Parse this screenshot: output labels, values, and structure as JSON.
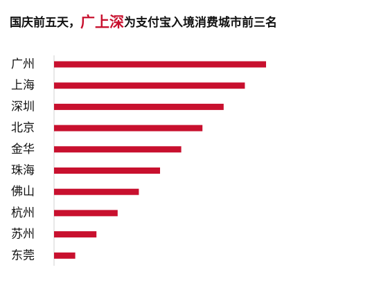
{
  "chart_data": {
    "type": "hbar",
    "title": [
      {
        "text": "国庆前五天，",
        "color": "#111111"
      },
      {
        "text": "广上深",
        "color": "#c8102e"
      },
      {
        "text": "为支付宝入境消费城市前三名",
        "color": "#111111"
      }
    ],
    "categories": [
      "广州",
      "上海",
      "深圳",
      "北京",
      "金华",
      "珠海",
      "佛山",
      "杭州",
      "苏州",
      "东莞"
    ],
    "values": [
      10,
      9,
      8,
      7,
      6,
      5,
      4,
      3,
      2,
      1
    ],
    "color": "#c8102e",
    "xlim": [
      0,
      10
    ]
  }
}
